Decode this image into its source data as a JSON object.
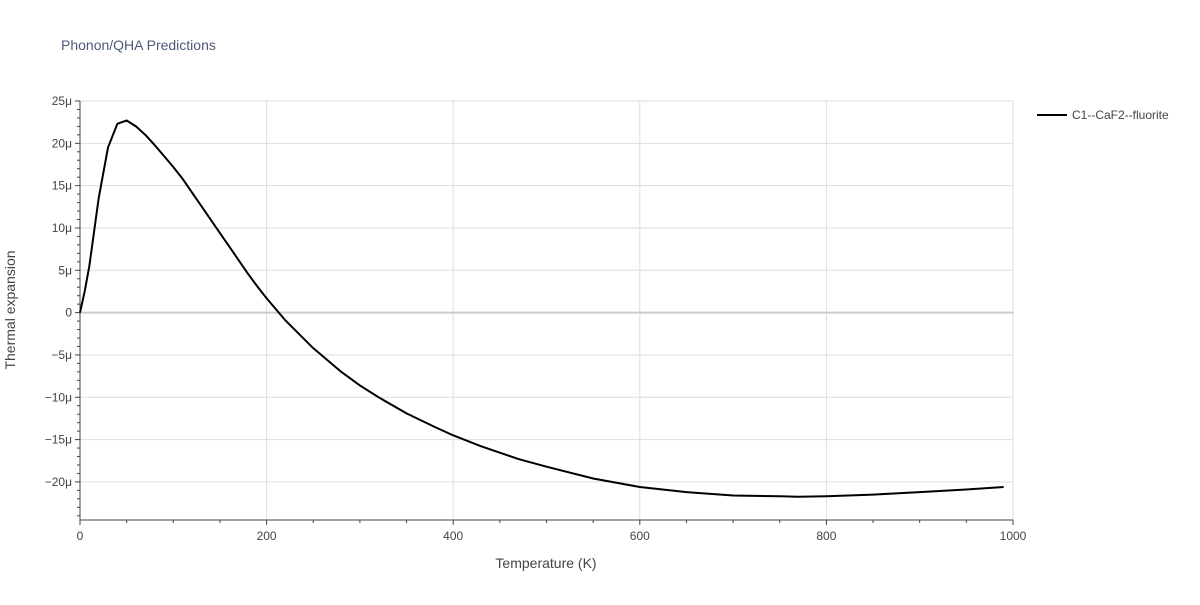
{
  "chart_data": {
    "type": "line",
    "title": "Phonon/QHA Predictions",
    "xlabel": "Temperature (K)",
    "ylabel": "Thermal expansion",
    "xlim": [
      0,
      1000
    ],
    "ylim": [
      -24.5,
      25
    ],
    "x_ticks": [
      0,
      200,
      400,
      600,
      800,
      1000
    ],
    "x_tick_labels": [
      "0",
      "200",
      "400",
      "600",
      "800",
      "1000"
    ],
    "y_ticks": [
      25,
      20,
      15,
      10,
      5,
      0,
      -5,
      -10,
      -15,
      -20
    ],
    "y_tick_labels": [
      "25μ",
      "20μ",
      "15μ",
      "10μ",
      "5μ",
      "0",
      "−5μ",
      "−10μ",
      "−15μ",
      "−20μ"
    ],
    "y_unit_scale": "1e-6",
    "grid": true,
    "legend_position": "top-right",
    "colors": {
      "line": "#000000",
      "grid": "#dddddd",
      "zero_line": "#cccccc",
      "text": "#444444",
      "title": "#4a5a78"
    },
    "series": [
      {
        "name": "C1--CaF2--fluorite",
        "x": [
          0,
          5,
          10,
          20,
          30,
          40,
          50,
          60,
          70,
          80,
          90,
          100,
          110,
          120,
          130,
          140,
          150,
          160,
          170,
          180,
          190,
          200,
          220,
          250,
          280,
          300,
          320,
          350,
          380,
          400,
          430,
          470,
          500,
          550,
          600,
          650,
          700,
          750,
          770,
          800,
          850,
          900,
          950,
          990
        ],
        "y": [
          0,
          2.5,
          5.5,
          13.5,
          19.5,
          22.3,
          22.7,
          22.0,
          21.0,
          19.8,
          18.5,
          17.2,
          15.8,
          14.2,
          12.6,
          11.0,
          9.4,
          7.8,
          6.2,
          4.6,
          3.1,
          1.7,
          -0.9,
          -4.2,
          -7.0,
          -8.6,
          -10.0,
          -11.9,
          -13.5,
          -14.5,
          -15.8,
          -17.3,
          -18.2,
          -19.6,
          -20.6,
          -21.2,
          -21.6,
          -21.7,
          -21.75,
          -21.7,
          -21.5,
          -21.2,
          -20.9,
          -20.6
        ]
      }
    ]
  }
}
